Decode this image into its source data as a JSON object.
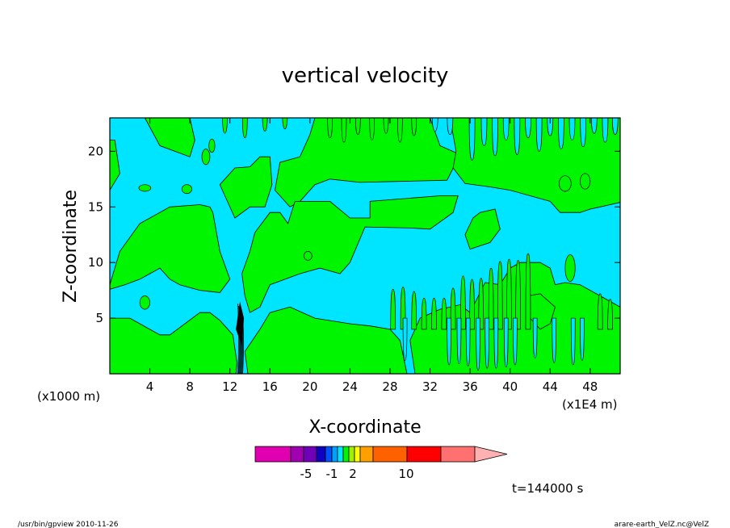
{
  "chart_data": {
    "type": "contour",
    "title": "vertical velocity",
    "xlabel": "X-coordinate",
    "ylabel": "Z-coordinate",
    "x_unit_left": "(x1000 m)",
    "x_unit_right": "(x1E4 m)",
    "xlim": [
      0,
      51
    ],
    "ylim": [
      0,
      23
    ],
    "x_ticks": [
      "4",
      "8",
      "12",
      "16",
      "20",
      "24",
      "28",
      "32",
      "36",
      "40",
      "44",
      "48"
    ],
    "x_tick_values": [
      4,
      8,
      12,
      16,
      20,
      24,
      28,
      32,
      36,
      40,
      44,
      48
    ],
    "y_ticks": [
      "5",
      "10",
      "15",
      "20"
    ],
    "y_tick_values": [
      5,
      10,
      15,
      20
    ],
    "fill_colors": {
      "negative": "#00e5ff",
      "positive": "#00f500"
    },
    "colorbar": {
      "colors": [
        "#e000b0",
        "#a000b0",
        "#7000b8",
        "#1000c0",
        "#0050ff",
        "#00a0ff",
        "#00e5ff",
        "#00f500",
        "#a0f000",
        "#ffff00",
        "#ffa000",
        "#ff6000",
        "#ff0000",
        "#ff7070",
        "#ffb0b0"
      ],
      "tick_labels": [
        "-5",
        "-1",
        "2",
        "10"
      ]
    },
    "time_label": "t=144000 s"
  },
  "footer": {
    "left": "/usr/bin/gpview   2010-11-26",
    "right": "arare-earth_VelZ.nc@VelZ"
  }
}
